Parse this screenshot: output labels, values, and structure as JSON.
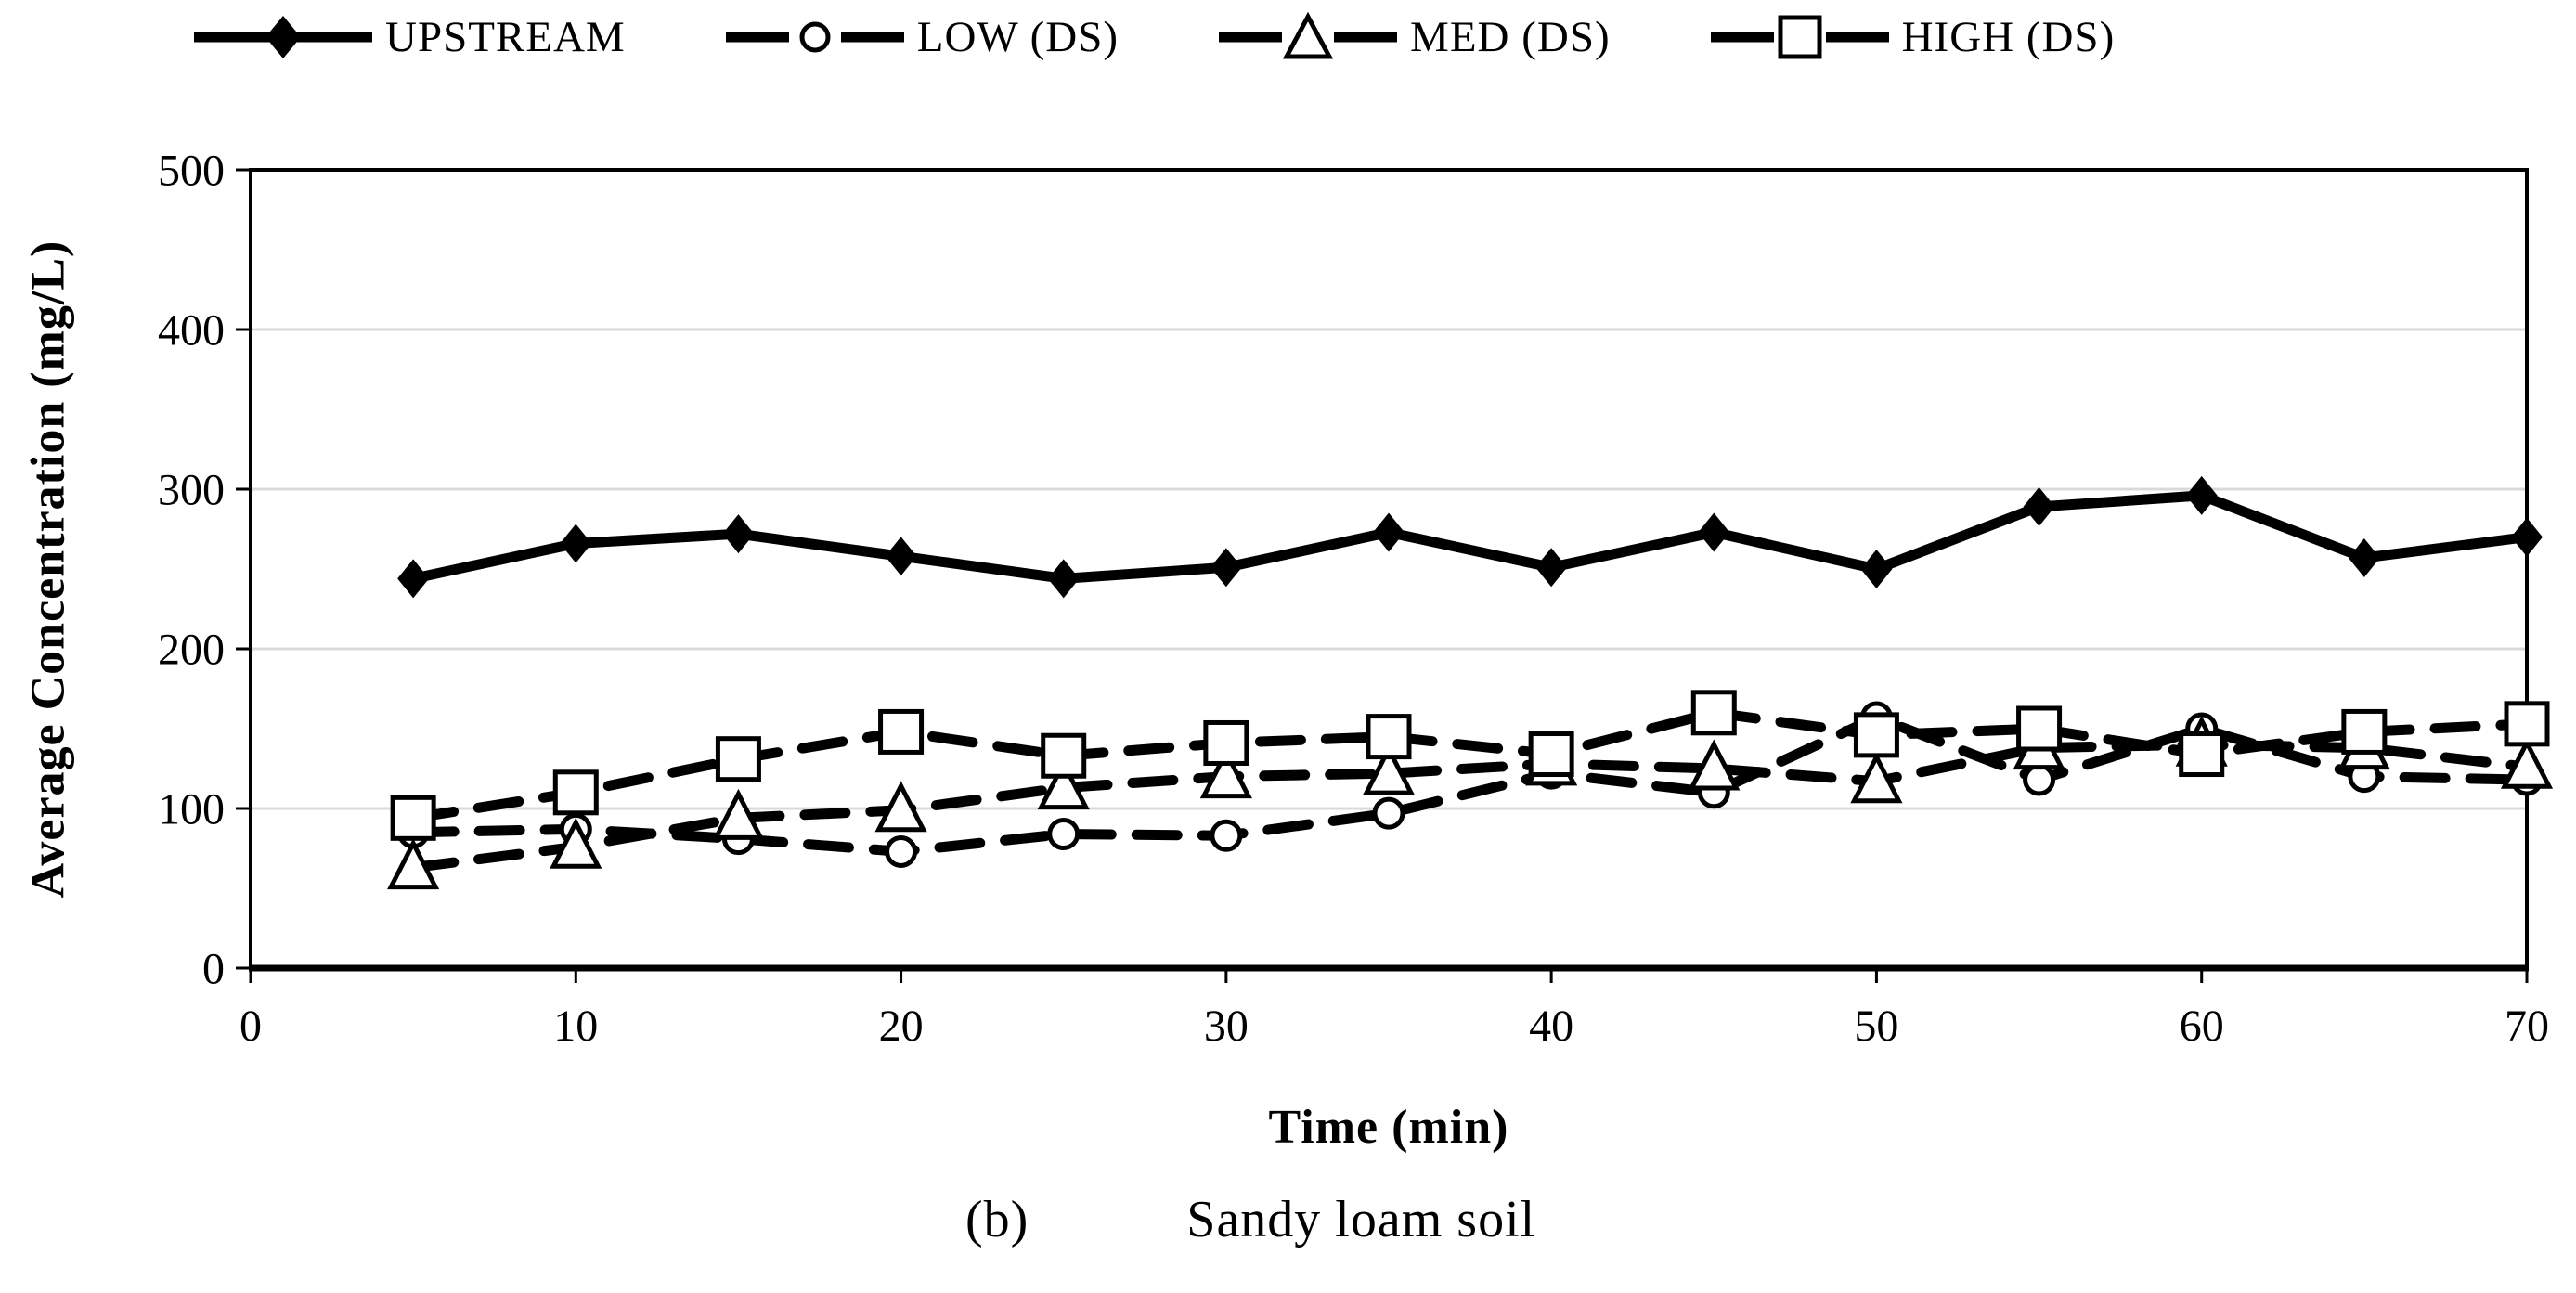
{
  "figure": {
    "caption_label": "(b)",
    "caption_text": "Sandy loam soil"
  },
  "chart_data": {
    "type": "line",
    "x": [
      5,
      10,
      15,
      20,
      25,
      30,
      35,
      40,
      45,
      50,
      55,
      60,
      65,
      70
    ],
    "series": [
      {
        "name": "UPSTREAM",
        "marker": "diamond",
        "line": "solid",
        "values": [
          244,
          266,
          272,
          258,
          244,
          251,
          273,
          251,
          273,
          250,
          289,
          296,
          257,
          270
        ]
      },
      {
        "name": "LOW (DS)",
        "marker": "circle",
        "line": "dashed",
        "values": [
          85,
          87,
          81,
          73,
          84,
          83,
          97,
          122,
          110,
          157,
          118,
          150,
          120,
          118
        ]
      },
      {
        "name": "MED (DS)",
        "marker": "triangle",
        "line": "dashed",
        "values": [
          63,
          76,
          94,
          99,
          113,
          120,
          122,
          128,
          125,
          117,
          138,
          140,
          138,
          126
        ]
      },
      {
        "name": "HIGH (DS)",
        "marker": "square",
        "line": "dashed",
        "values": [
          94,
          110,
          131,
          148,
          133,
          141,
          145,
          134,
          160,
          146,
          150,
          134,
          148,
          153
        ]
      }
    ],
    "title": "",
    "xlabel": "Time (min)",
    "ylabel": "Average Concentration (mg/L)",
    "xlim": [
      0,
      70
    ],
    "ylim": [
      0,
      500
    ],
    "xticks": [
      0,
      10,
      20,
      30,
      40,
      50,
      60,
      70
    ],
    "yticks": [
      0,
      100,
      200,
      300,
      400,
      500
    ],
    "grid": "horizontal",
    "legend_position": "top",
    "colors": {
      "line": "#000000",
      "grid": "#d9d9d9",
      "marker_fill": "#ffffff"
    }
  }
}
